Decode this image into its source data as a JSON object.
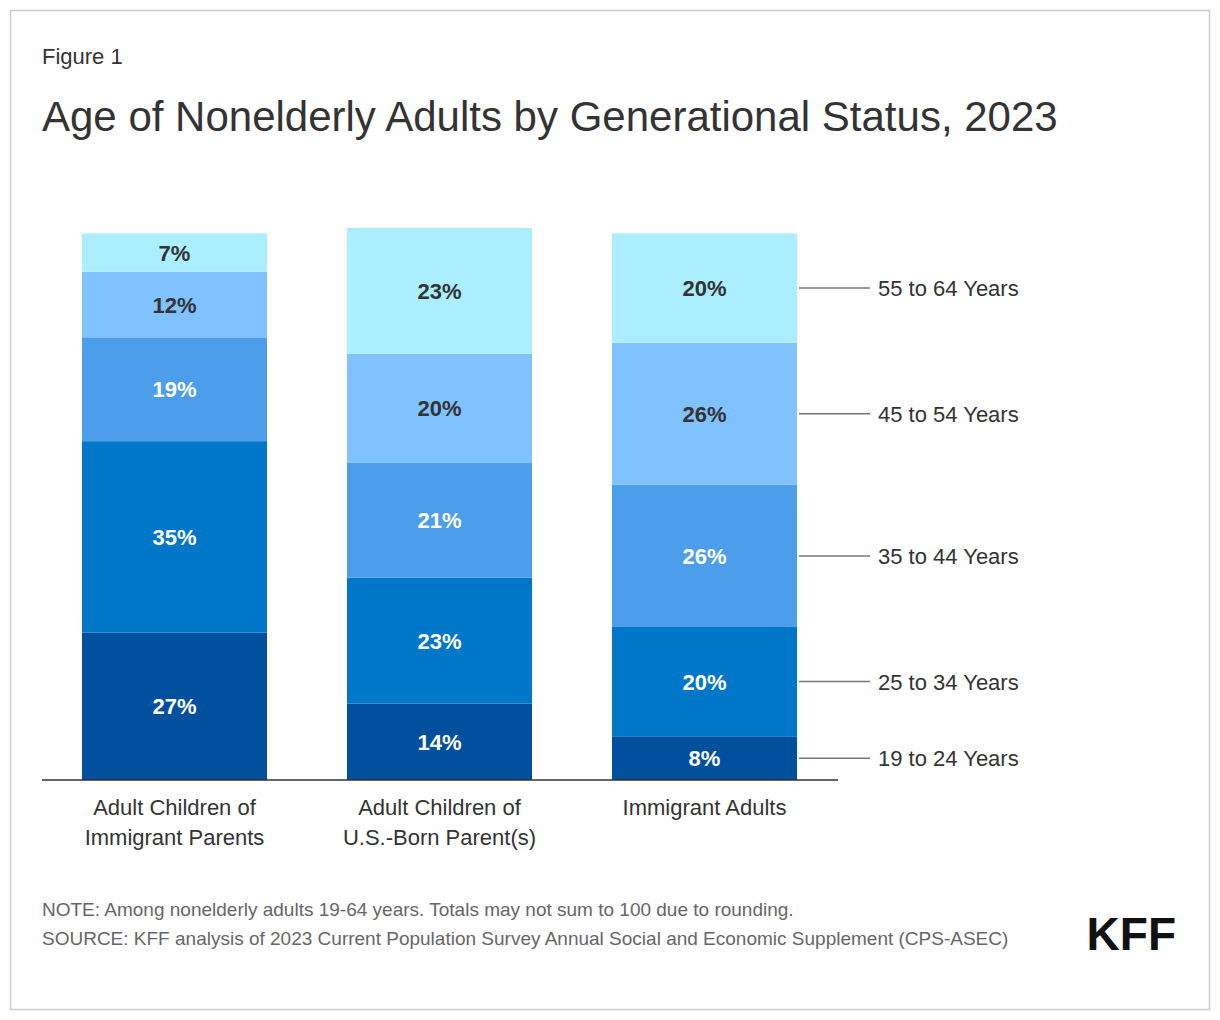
{
  "chart_data": {
    "type": "bar",
    "stacked": true,
    "subtitle": "Figure 1",
    "title": "Age of Nonelderly Adults by Generational Status, 2023",
    "categories": [
      "Adult Children of\nImmigrant Parents",
      "Adult Children of\nU.S.-Born Parent(s)",
      "Immigrant Adults"
    ],
    "series": [
      {
        "name": "19 to 24 Years",
        "color": "#00509e",
        "values": [
          27,
          14,
          8
        ],
        "value_labels": [
          "27%",
          "14%",
          "8%"
        ]
      },
      {
        "name": "25 to 34 Years",
        "color": "#0077c8",
        "values": [
          35,
          23,
          20
        ],
        "value_labels": [
          "35%",
          "23%",
          "20%"
        ]
      },
      {
        "name": "35 to 44 Years",
        "color": "#4c9eeb",
        "values": [
          19,
          21,
          26
        ],
        "value_labels": [
          "19%",
          "21%",
          "26%"
        ]
      },
      {
        "name": "45 to 54 Years",
        "color": "#80c1ff",
        "values": [
          12,
          20,
          26
        ],
        "value_labels": [
          "12%",
          "20%",
          "26%"
        ]
      },
      {
        "name": "55 to 64 Years",
        "color": "#aaeeff",
        "values": [
          7,
          23,
          20
        ],
        "value_labels": [
          "7%",
          "23%",
          "20%"
        ]
      }
    ],
    "ylim": [
      0,
      101
    ],
    "tick_labels": false,
    "data_labels": true,
    "grid": false,
    "legend": "right",
    "note": "NOTE: Among nonelderly adults 19-64 years. Totals may not sum to 100 due to rounding.",
    "source": "SOURCE: KFF analysis of 2023 Current Population Survey Annual Social and Economic Supplement (CPS-ASEC)",
    "credit": "KFF"
  }
}
